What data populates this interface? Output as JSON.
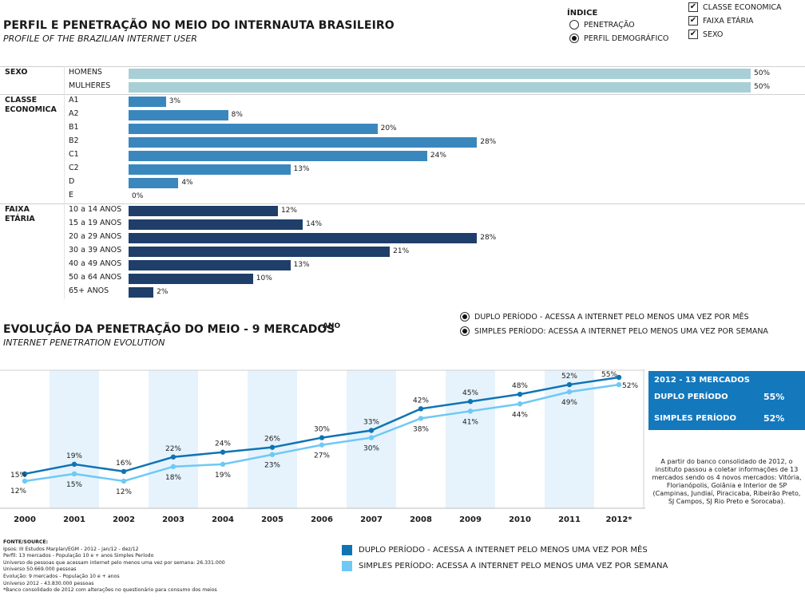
{
  "header": {
    "title": "PERFIL E PENETRAÇÃO NO MEIO DO INTERNAUTA BRASILEIRO",
    "subtitle": "PROFILE OF THE BRAZILIAN INTERNET USER"
  },
  "indice": {
    "label": "ÍNDICE",
    "options": [
      {
        "label": "PENETRAÇÃO",
        "selected": false
      },
      {
        "label": "PERFIL DEMOGRÁFICO",
        "selected": true
      }
    ]
  },
  "filters": [
    {
      "label": "CLASSE ECONOMICA",
      "checked": true
    },
    {
      "label": "FAIXA ETÁRIA",
      "checked": true
    },
    {
      "label": "SEXO",
      "checked": true
    }
  ],
  "check_glyph": "✔",
  "profile_chart": {
    "type": "bar",
    "orientation": "horizontal",
    "xlim": [
      0,
      50
    ],
    "groups": [
      {
        "label": "SEXO",
        "color": "#a9cfd6",
        "categories": [
          "HOMENS",
          "MULHERES"
        ],
        "values": [
          50,
          50
        ],
        "value_labels": [
          "50%",
          "50%"
        ]
      },
      {
        "label": "CLASSE ECONOMICA",
        "color": "#3a87be",
        "categories": [
          "A1",
          "A2",
          "B1",
          "B2",
          "C1",
          "C2",
          "D",
          "E"
        ],
        "values": [
          3,
          8,
          20,
          28,
          24,
          13,
          4,
          0
        ],
        "value_labels": [
          "3%",
          "8%",
          "20%",
          "28%",
          "24%",
          "13%",
          "4%",
          "0%"
        ]
      },
      {
        "label": "FAIXA ETÁRIA",
        "color": "#1f3e69",
        "categories": [
          "10 a 14 ANOS",
          "15 a 19 ANOS",
          "20 a 29 ANOS",
          "30 a 39 ANOS",
          "40 a 49 ANOS",
          "50 a 64 ANOS",
          "65+ ANOS"
        ],
        "values": [
          12,
          14,
          28,
          21,
          13,
          10,
          2
        ],
        "value_labels": [
          "12%",
          "14%",
          "28%",
          "21%",
          "13%",
          "10%",
          "2%"
        ]
      }
    ]
  },
  "evolution": {
    "title": "EVOLUÇÃO DA PENETRAÇÃO DO MEIO - 9 MERCADOS",
    "ano_label": "ANO",
    "subtitle": "INTERNET PENETRATION EVOLUTION",
    "options": [
      {
        "label": "DUPLO PERÍODO - ACESSA A INTERNET PELO MENOS UMA VEZ POR MÊS",
        "selected": true
      },
      {
        "label": "SIMPLES PERÍODO: ACESSA A INTERNET PELO MENOS UMA VEZ POR SEMANA",
        "selected": true
      }
    ]
  },
  "chart_data": {
    "type": "line",
    "x": [
      "2000",
      "2001",
      "2002",
      "2003",
      "2004",
      "2005",
      "2006",
      "2007",
      "2008",
      "2009",
      "2010",
      "2011",
      "2012*"
    ],
    "ylim": [
      0,
      60
    ],
    "grid": false,
    "series": [
      {
        "name": "DUPLO PERÍODO - ACESSA A INTERNET PELO MENOS UMA VEZ POR MÊS",
        "color": "#0f74b4",
        "values": [
          15,
          19,
          16,
          22,
          24,
          26,
          30,
          33,
          42,
          45,
          48,
          52,
          55
        ],
        "labels": [
          "15%",
          "19%",
          "16%",
          "22%",
          "24%",
          "26%",
          "30%",
          "33%",
          "42%",
          "45%",
          "48%",
          "52%",
          "55%"
        ]
      },
      {
        "name": "SIMPLES PERÍODO: ACESSA A INTERNET PELO MENOS UMA VEZ POR SEMANA",
        "color": "#6ec9f5",
        "values": [
          12,
          15,
          12,
          18,
          19,
          23,
          27,
          30,
          38,
          41,
          44,
          49,
          52
        ],
        "labels": [
          "12%",
          "15%",
          "12%",
          "18%",
          "19%",
          "23%",
          "27%",
          "30%",
          "38%",
          "41%",
          "44%",
          "49%",
          "52%"
        ]
      }
    ],
    "legend": "bottom"
  },
  "panel": {
    "title": "2012 - 13 MERCADOS",
    "rows": [
      {
        "label": "DUPLO PERÍODO",
        "value": "55%"
      },
      {
        "label": "SIMPLES PERÍODO",
        "value": "52%"
      }
    ]
  },
  "note": "A partir do banco consolidado de 2012, o instituto passou a coletar informações de 13 mercados sendo os 4 novos mercados: Vitória, Florianópolis, Goiânia e Interior de SP (Campinas, Jundiaí, Piracicaba, Ribeirão Preto, SJ Campos, SJ Rio Preto e Sorocaba).",
  "source": {
    "head": "FONTE/SOURCE:",
    "lines": [
      "Ipsos: III Estudos Marplan/EGM - 2012 - jan/12 - dez/12",
      "Perfil: 13 mercados - População 10 e + anos Simples Período",
      "Universo de pessoas que acessam internet pelo menos uma vez por semana: 26.331.000",
      "Universo 50.669.000 pessoas",
      "Evolução: 9 mercados - População 10 e + anos",
      "Universo 2012 - 43.830.000 pessoas",
      "*Banco consolidado de 2012 com alterações no questionário para consumo dos meios"
    ]
  }
}
